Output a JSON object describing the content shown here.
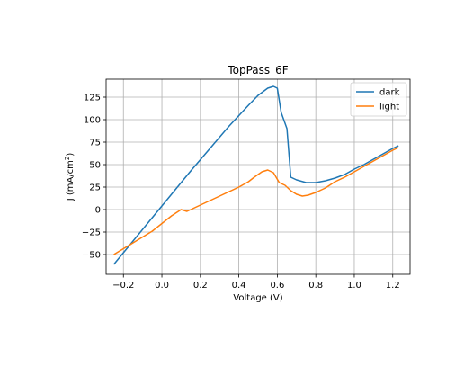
{
  "chart_data": {
    "type": "line",
    "title": "TopPass_6F",
    "xlabel": "Voltage (V)",
    "ylabel_main": "J (mA/cm",
    "ylabel_sup": "2",
    "ylabel_close": ")",
    "xlim": [
      -0.29,
      1.29
    ],
    "ylim": [
      -72,
      145
    ],
    "xticks": [
      -0.2,
      0.0,
      0.2,
      0.4,
      0.6,
      0.8,
      1.0,
      1.2
    ],
    "xtick_labels": [
      "−0.2",
      "0.0",
      "0.2",
      "0.4",
      "0.6",
      "0.8",
      "1.0",
      "1.2"
    ],
    "yticks": [
      -50,
      -25,
      0,
      25,
      50,
      75,
      100,
      125
    ],
    "ytick_labels": [
      "−50",
      "−25",
      "0",
      "25",
      "50",
      "75",
      "100",
      "125"
    ],
    "grid": true,
    "legend_position": "top-right",
    "series": [
      {
        "name": "dark",
        "color": "#1f77b4",
        "x": [
          -0.25,
          -0.15,
          -0.05,
          0.05,
          0.15,
          0.25,
          0.35,
          0.45,
          0.5,
          0.55,
          0.58,
          0.6,
          0.62,
          0.65,
          0.67,
          0.7,
          0.75,
          0.8,
          0.85,
          0.9,
          0.95,
          1.0,
          1.05,
          1.1,
          1.15,
          1.2,
          1.23
        ],
        "y": [
          -61,
          -35,
          -9,
          17,
          43,
          68,
          93,
          116,
          127,
          135,
          137,
          135,
          108,
          90,
          36,
          33,
          30,
          30,
          32,
          35,
          39,
          45,
          50,
          56,
          62,
          68,
          71
        ]
      },
      {
        "name": "light",
        "color": "#ff7f0e",
        "x": [
          -0.25,
          -0.15,
          -0.05,
          0.05,
          0.1,
          0.13,
          0.2,
          0.3,
          0.4,
          0.45,
          0.48,
          0.52,
          0.55,
          0.58,
          0.61,
          0.64,
          0.67,
          0.7,
          0.73,
          0.76,
          0.8,
          0.85,
          0.9,
          0.95,
          1.0,
          1.05,
          1.1,
          1.15,
          1.2,
          1.23
        ],
        "y": [
          -50,
          -37,
          -24,
          -7,
          0,
          -2,
          5,
          15,
          25,
          31,
          36,
          42,
          44,
          41,
          30,
          27,
          21,
          17,
          15,
          16,
          19,
          24,
          31,
          36,
          42,
          48,
          54,
          60,
          66,
          69
        ]
      }
    ]
  }
}
